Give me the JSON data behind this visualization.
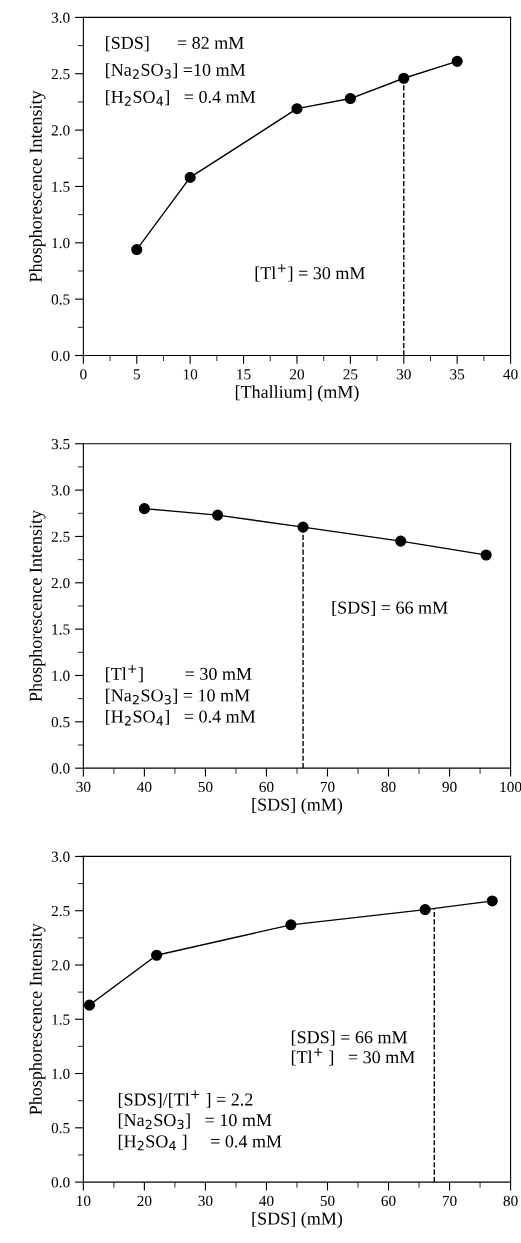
{
  "chart_data": [
    {
      "type": "line",
      "xlabel": "[Thallium] (mM)",
      "ylabel": "Phosphorescence Intensity",
      "marker": "circle",
      "line_style": "solid",
      "grid": false,
      "legend": false,
      "x": [
        5,
        10,
        20,
        25,
        30,
        35
      ],
      "series": [
        {
          "color": "#000000",
          "values": [
            0.94,
            1.58,
            2.19,
            2.28,
            2.46,
            2.61
          ]
        }
      ],
      "xlim": [
        0,
        40
      ],
      "xticks": [
        0,
        5,
        10,
        15,
        20,
        25,
        30,
        35,
        40
      ],
      "ylim": [
        0,
        3.0
      ],
      "yticks": [
        {
          "value": 0,
          "label": "0.0"
        },
        0.5,
        {
          "value": 1,
          "label": "1.0"
        },
        1.5,
        {
          "value": 2,
          "label": "2.0"
        },
        2.5,
        {
          "value": 3,
          "label": "3.0"
        }
      ],
      "ref_lines": [
        {
          "axis": "x",
          "value": 30,
          "color": "#000000",
          "line_style": "dashed"
        }
      ],
      "annotations": [
        "[SDS]      = 82 mM",
        "[Na$_{2}$SO$_{3}$] =10 mM",
        "[H$_{2}$SO$_{4}$]   = 0.4 mM",
        "[Tl$^{+}$] = 30 mM"
      ]
    },
    {
      "type": "line",
      "xlabel": "[SDS] (mM)",
      "ylabel": "Phosphorescence Intensity",
      "marker": "circle",
      "line_style": "solid",
      "grid": false,
      "legend": false,
      "x": [
        40,
        52,
        66,
        82,
        96
      ],
      "series": [
        {
          "color": "#000000",
          "values": [
            2.8,
            2.73,
            2.6,
            2.45,
            2.3
          ]
        }
      ],
      "xlim": [
        30,
        100
      ],
      "xticks": [
        30,
        40,
        50,
        60,
        70,
        80,
        90,
        100
      ],
      "ylim": [
        0,
        3.5
      ],
      "yticks": [
        {
          "value": 0,
          "label": "0.0"
        },
        0.5,
        {
          "value": 1,
          "label": "1.0"
        },
        1.5,
        {
          "value": 2,
          "label": "2.0"
        },
        2.5,
        {
          "value": 3,
          "label": "3.0"
        },
        3.5
      ],
      "ref_lines": [
        {
          "axis": "x",
          "value": 66,
          "color": "#000000",
          "line_style": "dashed"
        }
      ],
      "annotations": [
        "[SDS] = 66 mM",
        "[Tl$^{+}$]         = 30 mM",
        "[Na$_{2}$SO$_{3}$] = 10 mM",
        "[H$_{2}$SO$_{4}$]   = 0.4 mM"
      ]
    },
    {
      "type": "line",
      "xlabel": "[SDS] (mM)",
      "ylabel": "Phosphorescence Intensity",
      "marker": "circle",
      "line_style": "solid",
      "grid": false,
      "legend": false,
      "x": [
        11,
        22,
        44,
        66,
        77
      ],
      "series": [
        {
          "color": "#000000",
          "values": [
            1.63,
            2.09,
            2.37,
            2.51,
            2.59
          ]
        }
      ],
      "xlim": [
        10,
        80
      ],
      "xticks": [
        10,
        20,
        30,
        40,
        50,
        60,
        70,
        80
      ],
      "ylim": [
        0,
        3.0
      ],
      "yticks": [
        {
          "value": 0,
          "label": "0.0"
        },
        0.5,
        {
          "value": 1,
          "label": "1.0"
        },
        1.5,
        {
          "value": 2,
          "label": "2.0"
        },
        2.5,
        {
          "value": 3,
          "label": "3.0"
        }
      ],
      "ref_lines": [
        {
          "axis": "x",
          "value": 67.5,
          "color": "#000000",
          "line_style": "dashed"
        }
      ],
      "annotations": [
        "[SDS] = 66 mM",
        "[Tl$^{+}$ ]   = 30 mM",
        "[SDS]/[Tl$^{+}$ ] = 2.2",
        "[Na$_{2}$SO$_{3}$]   = 10 mM",
        "[H$_{2}$SO$_{4}$ ]     = 0.4 mM"
      ]
    }
  ]
}
